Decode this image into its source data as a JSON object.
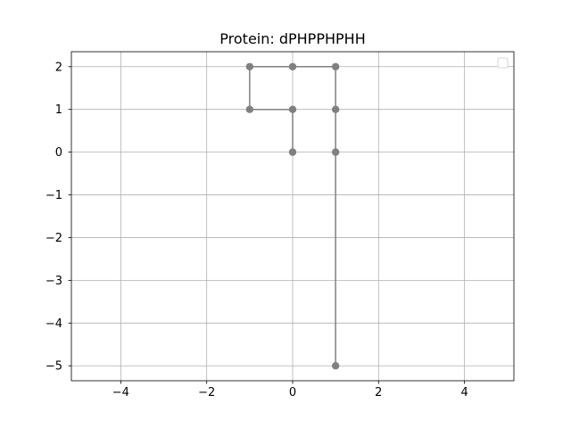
{
  "chart_data": {
    "type": "line",
    "title": "Protein: dPHPPHPHH",
    "xlabel": "",
    "ylabel": "",
    "xlim": [
      -5.15,
      5.15
    ],
    "ylim": [
      -5.35,
      2.35
    ],
    "xticks": [
      -4,
      -2,
      0,
      2,
      4
    ],
    "yticks": [
      2,
      1,
      0,
      -1,
      -2,
      -3,
      -4,
      -5
    ],
    "xtick_labels": [
      "−4",
      "−2",
      "0",
      "2",
      "4"
    ],
    "ytick_labels": [
      "2",
      "1",
      "0",
      "−1",
      "−2",
      "−3",
      "−4",
      "−5"
    ],
    "grid": true,
    "legend": {
      "placement": "top-right",
      "entries": []
    },
    "series": [
      {
        "color": "#808080",
        "marker": "circle",
        "x": [
          0,
          0,
          -1,
          -1,
          0,
          1,
          1,
          1,
          1
        ],
        "y": [
          0,
          1,
          1,
          2,
          2,
          2,
          1,
          0,
          -5
        ]
      }
    ]
  }
}
